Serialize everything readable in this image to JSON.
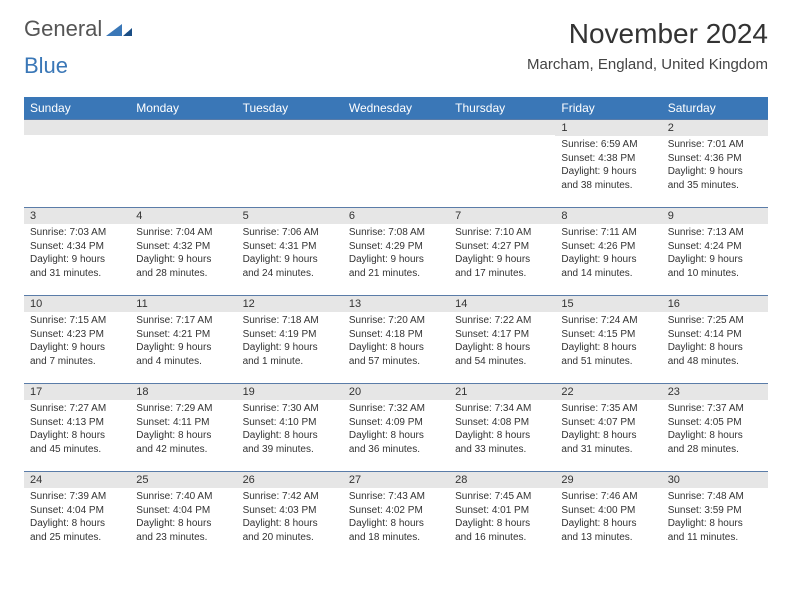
{
  "brand": {
    "word1": "General",
    "word2": "Blue"
  },
  "title": "November 2024",
  "location": "Marcham, England, United Kingdom",
  "colors": {
    "header_bg": "#3a77b7",
    "header_text": "#ffffff",
    "daybar_bg": "#e6e6e6",
    "daybar_border": "#5a7ca8",
    "body_text": "#333333",
    "page_bg": "#ffffff"
  },
  "day_headers": [
    "Sunday",
    "Monday",
    "Tuesday",
    "Wednesday",
    "Thursday",
    "Friday",
    "Saturday"
  ],
  "weeks": [
    [
      null,
      null,
      null,
      null,
      null,
      {
        "n": "1",
        "sr": "Sunrise: 6:59 AM",
        "ss": "Sunset: 4:38 PM",
        "d1": "Daylight: 9 hours",
        "d2": "and 38 minutes."
      },
      {
        "n": "2",
        "sr": "Sunrise: 7:01 AM",
        "ss": "Sunset: 4:36 PM",
        "d1": "Daylight: 9 hours",
        "d2": "and 35 minutes."
      }
    ],
    [
      {
        "n": "3",
        "sr": "Sunrise: 7:03 AM",
        "ss": "Sunset: 4:34 PM",
        "d1": "Daylight: 9 hours",
        "d2": "and 31 minutes."
      },
      {
        "n": "4",
        "sr": "Sunrise: 7:04 AM",
        "ss": "Sunset: 4:32 PM",
        "d1": "Daylight: 9 hours",
        "d2": "and 28 minutes."
      },
      {
        "n": "5",
        "sr": "Sunrise: 7:06 AM",
        "ss": "Sunset: 4:31 PM",
        "d1": "Daylight: 9 hours",
        "d2": "and 24 minutes."
      },
      {
        "n": "6",
        "sr": "Sunrise: 7:08 AM",
        "ss": "Sunset: 4:29 PM",
        "d1": "Daylight: 9 hours",
        "d2": "and 21 minutes."
      },
      {
        "n": "7",
        "sr": "Sunrise: 7:10 AM",
        "ss": "Sunset: 4:27 PM",
        "d1": "Daylight: 9 hours",
        "d2": "and 17 minutes."
      },
      {
        "n": "8",
        "sr": "Sunrise: 7:11 AM",
        "ss": "Sunset: 4:26 PM",
        "d1": "Daylight: 9 hours",
        "d2": "and 14 minutes."
      },
      {
        "n": "9",
        "sr": "Sunrise: 7:13 AM",
        "ss": "Sunset: 4:24 PM",
        "d1": "Daylight: 9 hours",
        "d2": "and 10 minutes."
      }
    ],
    [
      {
        "n": "10",
        "sr": "Sunrise: 7:15 AM",
        "ss": "Sunset: 4:23 PM",
        "d1": "Daylight: 9 hours",
        "d2": "and 7 minutes."
      },
      {
        "n": "11",
        "sr": "Sunrise: 7:17 AM",
        "ss": "Sunset: 4:21 PM",
        "d1": "Daylight: 9 hours",
        "d2": "and 4 minutes."
      },
      {
        "n": "12",
        "sr": "Sunrise: 7:18 AM",
        "ss": "Sunset: 4:19 PM",
        "d1": "Daylight: 9 hours",
        "d2": "and 1 minute."
      },
      {
        "n": "13",
        "sr": "Sunrise: 7:20 AM",
        "ss": "Sunset: 4:18 PM",
        "d1": "Daylight: 8 hours",
        "d2": "and 57 minutes."
      },
      {
        "n": "14",
        "sr": "Sunrise: 7:22 AM",
        "ss": "Sunset: 4:17 PM",
        "d1": "Daylight: 8 hours",
        "d2": "and 54 minutes."
      },
      {
        "n": "15",
        "sr": "Sunrise: 7:24 AM",
        "ss": "Sunset: 4:15 PM",
        "d1": "Daylight: 8 hours",
        "d2": "and 51 minutes."
      },
      {
        "n": "16",
        "sr": "Sunrise: 7:25 AM",
        "ss": "Sunset: 4:14 PM",
        "d1": "Daylight: 8 hours",
        "d2": "and 48 minutes."
      }
    ],
    [
      {
        "n": "17",
        "sr": "Sunrise: 7:27 AM",
        "ss": "Sunset: 4:13 PM",
        "d1": "Daylight: 8 hours",
        "d2": "and 45 minutes."
      },
      {
        "n": "18",
        "sr": "Sunrise: 7:29 AM",
        "ss": "Sunset: 4:11 PM",
        "d1": "Daylight: 8 hours",
        "d2": "and 42 minutes."
      },
      {
        "n": "19",
        "sr": "Sunrise: 7:30 AM",
        "ss": "Sunset: 4:10 PM",
        "d1": "Daylight: 8 hours",
        "d2": "and 39 minutes."
      },
      {
        "n": "20",
        "sr": "Sunrise: 7:32 AM",
        "ss": "Sunset: 4:09 PM",
        "d1": "Daylight: 8 hours",
        "d2": "and 36 minutes."
      },
      {
        "n": "21",
        "sr": "Sunrise: 7:34 AM",
        "ss": "Sunset: 4:08 PM",
        "d1": "Daylight: 8 hours",
        "d2": "and 33 minutes."
      },
      {
        "n": "22",
        "sr": "Sunrise: 7:35 AM",
        "ss": "Sunset: 4:07 PM",
        "d1": "Daylight: 8 hours",
        "d2": "and 31 minutes."
      },
      {
        "n": "23",
        "sr": "Sunrise: 7:37 AM",
        "ss": "Sunset: 4:05 PM",
        "d1": "Daylight: 8 hours",
        "d2": "and 28 minutes."
      }
    ],
    [
      {
        "n": "24",
        "sr": "Sunrise: 7:39 AM",
        "ss": "Sunset: 4:04 PM",
        "d1": "Daylight: 8 hours",
        "d2": "and 25 minutes."
      },
      {
        "n": "25",
        "sr": "Sunrise: 7:40 AM",
        "ss": "Sunset: 4:04 PM",
        "d1": "Daylight: 8 hours",
        "d2": "and 23 minutes."
      },
      {
        "n": "26",
        "sr": "Sunrise: 7:42 AM",
        "ss": "Sunset: 4:03 PM",
        "d1": "Daylight: 8 hours",
        "d2": "and 20 minutes."
      },
      {
        "n": "27",
        "sr": "Sunrise: 7:43 AM",
        "ss": "Sunset: 4:02 PM",
        "d1": "Daylight: 8 hours",
        "d2": "and 18 minutes."
      },
      {
        "n": "28",
        "sr": "Sunrise: 7:45 AM",
        "ss": "Sunset: 4:01 PM",
        "d1": "Daylight: 8 hours",
        "d2": "and 16 minutes."
      },
      {
        "n": "29",
        "sr": "Sunrise: 7:46 AM",
        "ss": "Sunset: 4:00 PM",
        "d1": "Daylight: 8 hours",
        "d2": "and 13 minutes."
      },
      {
        "n": "30",
        "sr": "Sunrise: 7:48 AM",
        "ss": "Sunset: 3:59 PM",
        "d1": "Daylight: 8 hours",
        "d2": "and 11 minutes."
      }
    ]
  ]
}
